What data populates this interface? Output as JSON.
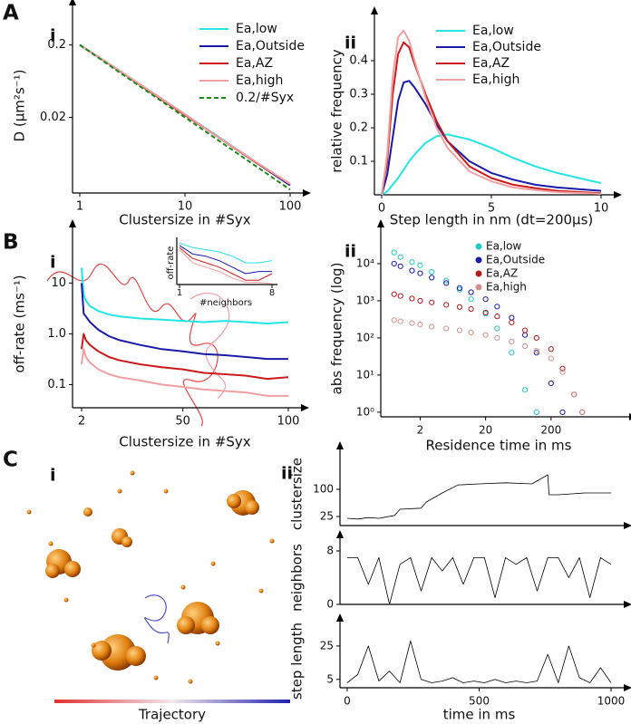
{
  "chart_data": [
    {
      "type": "line",
      "panel": "A",
      "subpanel": "i",
      "xlabel": "Clustersize in #Syx",
      "ylabel": "D  (μm²s⁻¹)",
      "xlog": true,
      "ylog": true,
      "x": [
        1,
        2,
        5,
        10,
        20,
        50,
        100
      ],
      "xlim": [
        1,
        100
      ],
      "xticks": [
        1,
        10,
        100
      ],
      "ylim": [
        0.0018,
        0.47
      ],
      "yticks": [
        0.02,
        0.2
      ],
      "series": [
        {
          "name": "Ea,low",
          "color": "#22e5e5",
          "values": [
            0.2,
            0.105,
            0.043,
            0.022,
            0.0112,
            0.0046,
            0.0024
          ]
        },
        {
          "name": "Ea,Outside",
          "color": "#1a1aa8",
          "values": [
            0.2,
            0.104,
            0.043,
            0.022,
            0.011,
            0.0045,
            0.0023
          ]
        },
        {
          "name": "Ea,AZ",
          "color": "#cc1a1a",
          "values": [
            0.2,
            0.104,
            0.042,
            0.0215,
            0.011,
            0.0045,
            0.0024
          ]
        },
        {
          "name": "Ea,high",
          "color": "#f0a0a0",
          "values": [
            0.2,
            0.105,
            0.043,
            0.022,
            0.011,
            0.0046,
            0.0024
          ]
        },
        {
          "name": "0.2/#Syx",
          "color": "#1a8a1a",
          "dash": true,
          "values": [
            0.2,
            0.1,
            0.04,
            0.02,
            0.01,
            0.004,
            0.002
          ]
        }
      ]
    },
    {
      "type": "line",
      "subpanel": "ii",
      "xlabel": "Step length in nm (dt=200µs)",
      "ylabel": "relative frequency",
      "x": [
        0,
        0.25,
        0.5,
        0.75,
        1,
        1.25,
        1.5,
        2,
        2.5,
        3,
        4,
        5,
        6,
        7,
        8,
        10
      ],
      "xlim": [
        0,
        10
      ],
      "xticks": [
        0,
        5,
        10
      ],
      "ylim": [
        0,
        0.5
      ],
      "yticks": [
        0.1,
        0.2,
        0.3,
        0.4
      ],
      "series": [
        {
          "name": "Ea,low",
          "color": "#22e5e5",
          "values": [
            0,
            0.01,
            0.03,
            0.05,
            0.075,
            0.1,
            0.12,
            0.155,
            0.175,
            0.18,
            0.165,
            0.14,
            0.11,
            0.085,
            0.065,
            0.035
          ]
        },
        {
          "name": "Ea,Outside",
          "color": "#1a1aa8",
          "values": [
            0,
            0.06,
            0.17,
            0.28,
            0.335,
            0.34,
            0.32,
            0.27,
            0.21,
            0.16,
            0.1,
            0.065,
            0.045,
            0.03,
            0.022,
            0.012
          ]
        },
        {
          "name": "Ea,AZ",
          "color": "#cc1a1a",
          "values": [
            0,
            0.1,
            0.3,
            0.42,
            0.455,
            0.44,
            0.39,
            0.3,
            0.22,
            0.16,
            0.085,
            0.05,
            0.03,
            0.02,
            0.012,
            0.005
          ]
        },
        {
          "name": "Ea,high",
          "color": "#f0a0a0",
          "values": [
            0,
            0.12,
            0.35,
            0.47,
            0.49,
            0.46,
            0.4,
            0.29,
            0.2,
            0.14,
            0.07,
            0.04,
            0.022,
            0.014,
            0.008,
            0.003
          ]
        }
      ]
    },
    {
      "type": "line",
      "panel": "B",
      "subpanel": "i",
      "xlabel": "Clustersize in #Syx",
      "ylabel": "off-rate (ms⁻¹)",
      "ylog": true,
      "x": [
        2,
        3,
        4,
        6,
        10,
        15,
        20,
        30,
        40,
        50,
        60,
        70,
        80,
        90,
        100
      ],
      "xlim": [
        2,
        100
      ],
      "xticks": [
        2,
        50,
        100
      ],
      "ylim": [
        0.035,
        70
      ],
      "yticks": [
        0.1,
        {
          "value": 1,
          "label": "1.0"
        },
        10
      ],
      "series": [
        {
          "color": "#22e5e5",
          "values": [
            20,
            6,
            4.5,
            3.5,
            2.8,
            2.4,
            2.2,
            2.0,
            1.9,
            1.8,
            1.7,
            1.8,
            1.7,
            1.6,
            1.7
          ]
        },
        {
          "color": "#1a1aa8",
          "values": [
            10,
            2.5,
            2.2,
            1.7,
            1.2,
            0.9,
            0.75,
            0.6,
            0.5,
            0.45,
            0.4,
            0.38,
            0.35,
            0.32,
            0.32
          ]
        },
        {
          "color": "#cc1a1a",
          "values": [
            0.5,
            1.0,
            0.75,
            0.6,
            0.45,
            0.35,
            0.3,
            0.25,
            0.22,
            0.2,
            0.17,
            0.16,
            0.15,
            0.13,
            0.14
          ]
        },
        {
          "color": "#f0a0a0",
          "values": [
            0.25,
            0.5,
            0.35,
            0.27,
            0.2,
            0.16,
            0.14,
            0.12,
            0.1,
            0.09,
            0.08,
            0.075,
            0.07,
            0.06,
            0.06
          ]
        }
      ]
    },
    {
      "type": "line",
      "xlabel": "#neighbors",
      "ylabel": "off-rate",
      "x": [
        1,
        2,
        3,
        4,
        5,
        6,
        7,
        8
      ],
      "xlim": [
        1,
        8
      ],
      "xticks": [
        1,
        8
      ],
      "ylim": [
        0,
        1
      ],
      "series": [
        {
          "color": "#22e5e5",
          "values": [
            0.95,
            0.85,
            0.8,
            0.75,
            0.65,
            0.5,
            0.5,
            0.55
          ]
        },
        {
          "color": "#1a1aa8",
          "values": [
            0.9,
            0.7,
            0.65,
            0.55,
            0.4,
            0.25,
            0.3,
            0.3
          ]
        },
        {
          "color": "#cc1a1a",
          "values": [
            0.85,
            0.6,
            0.5,
            0.4,
            0.25,
            0.1,
            0.1,
            0.25
          ]
        },
        {
          "color": "#f0a0a0",
          "values": [
            0.8,
            0.5,
            0.4,
            0.3,
            0.15,
            0.05,
            0.05,
            0.02
          ]
        }
      ]
    },
    {
      "type": "scatter",
      "subpanel": "ii",
      "xlabel": "Residence time in ms",
      "ylabel": "abs frequency (log)",
      "xlog": true,
      "ylog": true,
      "x": [
        0.8,
        1,
        1.5,
        2,
        3,
        5,
        8,
        12,
        20,
        30,
        50,
        80,
        120,
        200,
        300,
        450,
        600
      ],
      "xlim": [
        0.5,
        2000
      ],
      "xticks": [
        2,
        20,
        200
      ],
      "ylim": [
        0.75,
        43000
      ],
      "yticks": [
        {
          "value": 1,
          "label": "10⁰"
        },
        {
          "value": 10,
          "label": "10¹"
        },
        {
          "value": 100,
          "label": "10²"
        },
        {
          "value": 1000,
          "label": "10³"
        },
        {
          "value": 10000,
          "label": "10⁴"
        }
      ],
      "series": [
        {
          "name": "Ea,low",
          "color": "#22c8c8",
          "values": [
            20000,
            15000,
            11000,
            9000,
            6000,
            3500,
            2000,
            1100,
            450,
            180,
            40,
            4,
            1,
            null,
            null,
            null,
            null
          ]
        },
        {
          "name": "Ea,Outside",
          "color": "#1a1aa8",
          "values": [
            10000,
            8500,
            6500,
            5500,
            4200,
            3000,
            2200,
            1700,
            1100,
            700,
            350,
            120,
            40,
            6,
            1,
            null,
            null
          ]
        },
        {
          "name": "Ea,AZ",
          "color": "#b01a1a",
          "values": [
            1500,
            1350,
            1150,
            1000,
            900,
            780,
            680,
            600,
            480,
            380,
            260,
            160,
            100,
            50,
            15,
            3,
            1
          ]
        },
        {
          "name": "Ea,high",
          "color": "#d49090",
          "values": [
            300,
            280,
            250,
            230,
            200,
            180,
            160,
            140,
            120,
            100,
            80,
            60,
            45,
            28,
            12,
            3,
            1
          ]
        }
      ]
    },
    {
      "type": "image",
      "panel": "C",
      "subpanel": "i",
      "label": "Trajectory"
    },
    {
      "type": "line",
      "subpanel": "ii",
      "ylabel": "clustersize",
      "x": [
        0,
        40,
        80,
        120,
        180,
        200,
        280,
        300,
        360,
        420,
        500,
        600,
        700,
        760,
        765,
        800,
        900,
        1000
      ],
      "xlim": [
        0,
        1000
      ],
      "ylim": [
        0,
        175
      ],
      "yticks": [
        25,
        100
      ],
      "series": [
        {
          "color": "#000000",
          "values": [
            20,
            18,
            22,
            20,
            28,
            45,
            48,
            65,
            90,
            112,
            115,
            118,
            115,
            140,
            85,
            85,
            90,
            90
          ]
        }
      ]
    },
    {
      "type": "line",
      "ylabel": "neighbors",
      "x": [
        0,
        40,
        80,
        120,
        160,
        200,
        240,
        280,
        320,
        360,
        400,
        440,
        480,
        520,
        560,
        600,
        640,
        680,
        720,
        760,
        800,
        840,
        880,
        920,
        960,
        1000
      ],
      "xlim": [
        0,
        1000
      ],
      "ylim": [
        0,
        8
      ],
      "yticks": [
        0,
        8
      ],
      "series": [
        {
          "color": "#000000",
          "values": [
            7,
            7,
            3,
            7,
            0,
            6,
            7,
            2,
            7,
            5,
            7,
            3,
            7,
            7,
            1,
            7,
            6,
            7,
            2,
            7,
            7,
            4,
            7,
            1,
            7,
            6
          ]
        }
      ]
    },
    {
      "type": "line",
      "ylabel": "step length",
      "xlabel": "time in ms",
      "x": [
        0,
        40,
        80,
        120,
        160,
        200,
        240,
        280,
        320,
        360,
        400,
        440,
        480,
        520,
        560,
        600,
        640,
        680,
        720,
        760,
        800,
        840,
        880,
        920,
        960,
        1000
      ],
      "xlim": [
        0,
        1000
      ],
      "xticks": [
        0,
        500,
        1000
      ],
      "ylim": [
        0,
        32
      ],
      "yticks": [
        5,
        25
      ],
      "series": [
        {
          "color": "#000000",
          "values": [
            3,
            8,
            25,
            4,
            10,
            3,
            28,
            5,
            3,
            4,
            6,
            3,
            4,
            3,
            5,
            3,
            4,
            3,
            4,
            20,
            3,
            25,
            6,
            3,
            12,
            3
          ]
        }
      ]
    }
  ]
}
